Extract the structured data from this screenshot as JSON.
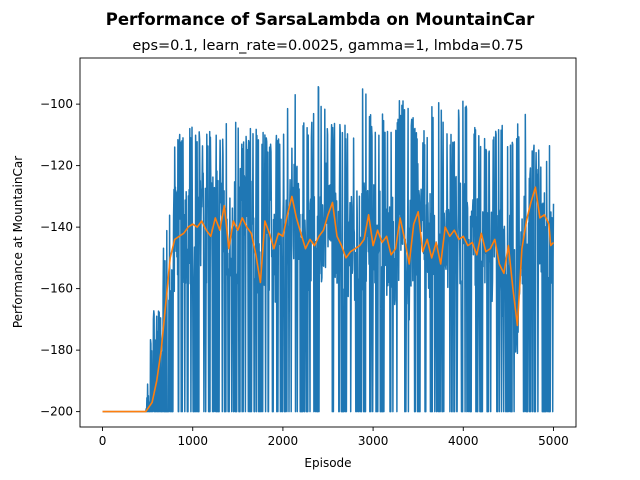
{
  "chart_data": {
    "type": "line",
    "title": "Performance of SarsaLambda on MountainCar",
    "subtitle": "eps=0.1, learn_rate=0.0025, gamma=1, lmbda=0.75",
    "xlabel": "Episode",
    "ylabel": "Performance at MountainCar",
    "xlim": [
      -250,
      5250
    ],
    "ylim": [
      -205,
      -85
    ],
    "x_ticks": [
      0,
      1000,
      2000,
      3000,
      4000,
      5000
    ],
    "y_ticks": [
      -200,
      -180,
      -160,
      -140,
      -120,
      -100
    ],
    "grid": false,
    "legend": "none",
    "n_episodes": 5000,
    "series": [
      {
        "role": "per-episode",
        "color": "#1f77b4",
        "x": [
          0,
          480,
          550,
          600,
          650,
          700,
          750,
          800,
          900,
          1000,
          1100,
          1200,
          1300,
          1400,
          1500,
          1600,
          1700,
          1800,
          1900,
          2000,
          2100,
          2200,
          2300,
          2400,
          2500,
          2600,
          2700,
          2800,
          2900,
          3000,
          3100,
          3200,
          3300,
          3400,
          3500,
          3600,
          3700,
          3800,
          3900,
          4000,
          4100,
          4200,
          4300,
          4400,
          4500,
          4600,
          4700,
          4800,
          4900,
          5000
        ],
        "upper": [
          -200,
          -200,
          -167,
          -156,
          -155,
          -135,
          -118,
          -111,
          -107,
          -107,
          -108,
          -109,
          -108,
          -100,
          -107,
          -110,
          -104,
          -110,
          -110,
          -108,
          -93,
          -104,
          -109,
          -93,
          -106,
          -104,
          -107,
          -106,
          -93,
          -107,
          -103,
          -109,
          -98,
          -101,
          -107,
          -109,
          -93,
          -106,
          -109,
          -93,
          -106,
          -111,
          -111,
          -104,
          -110,
          -106,
          -100,
          -110,
          -112,
          -112
        ],
        "lower": [
          -200,
          -200,
          -200,
          -200,
          -200,
          -200,
          -200,
          -200,
          -200,
          -200,
          -200,
          -200,
          -200,
          -200,
          -200,
          -200,
          -200,
          -200,
          -200,
          -200,
          -200,
          -200,
          -200,
          -200,
          -200,
          -200,
          -200,
          -200,
          -200,
          -200,
          -200,
          -200,
          -200,
          -200,
          -200,
          -200,
          -200,
          -200,
          -200,
          -200,
          -200,
          -200,
          -200,
          -200,
          -200,
          -200,
          -200,
          -200,
          -200,
          -200
        ]
      },
      {
        "role": "moving-average",
        "color": "#ff7f0e",
        "x": [
          0,
          480,
          550,
          600,
          650,
          700,
          750,
          800,
          850,
          900,
          950,
          1000,
          1050,
          1100,
          1150,
          1200,
          1250,
          1300,
          1350,
          1400,
          1450,
          1500,
          1550,
          1600,
          1650,
          1700,
          1750,
          1800,
          1850,
          1900,
          1950,
          2000,
          2050,
          2100,
          2150,
          2200,
          2250,
          2300,
          2350,
          2400,
          2450,
          2500,
          2550,
          2600,
          2650,
          2700,
          2750,
          2800,
          2850,
          2900,
          2950,
          3000,
          3050,
          3100,
          3150,
          3200,
          3250,
          3300,
          3350,
          3400,
          3450,
          3500,
          3550,
          3600,
          3650,
          3700,
          3750,
          3800,
          3850,
          3900,
          3950,
          4000,
          4050,
          4100,
          4150,
          4200,
          4250,
          4300,
          4350,
          4400,
          4450,
          4500,
          4550,
          4600,
          4650,
          4700,
          4750,
          4800,
          4850,
          4900,
          4950,
          4970,
          5000
        ],
        "y": [
          -200,
          -200,
          -197,
          -190,
          -180,
          -165,
          -150,
          -144,
          -143,
          -142,
          -140,
          -139,
          -140,
          -138,
          -141,
          -143,
          -137,
          -141,
          -133,
          -147,
          -138,
          -141,
          -137,
          -140,
          -142,
          -149,
          -158,
          -138,
          -142,
          -147,
          -142,
          -143,
          -136,
          -130,
          -137,
          -142,
          -147,
          -144,
          -146,
          -143,
          -141,
          -136,
          -132,
          -143,
          -146,
          -150,
          -148,
          -147,
          -146,
          -144,
          -136,
          -146,
          -141,
          -145,
          -143,
          -149,
          -147,
          -137,
          -144,
          -152,
          -139,
          -135,
          -148,
          -144,
          -150,
          -145,
          -152,
          -140,
          -143,
          -141,
          -144,
          -143,
          -146,
          -145,
          -149,
          -142,
          -148,
          -147,
          -144,
          -152,
          -155,
          -146,
          -160,
          -172,
          -147,
          -138,
          -132,
          -127,
          -137,
          -136,
          -139,
          -146,
          -145
        ]
      }
    ]
  }
}
